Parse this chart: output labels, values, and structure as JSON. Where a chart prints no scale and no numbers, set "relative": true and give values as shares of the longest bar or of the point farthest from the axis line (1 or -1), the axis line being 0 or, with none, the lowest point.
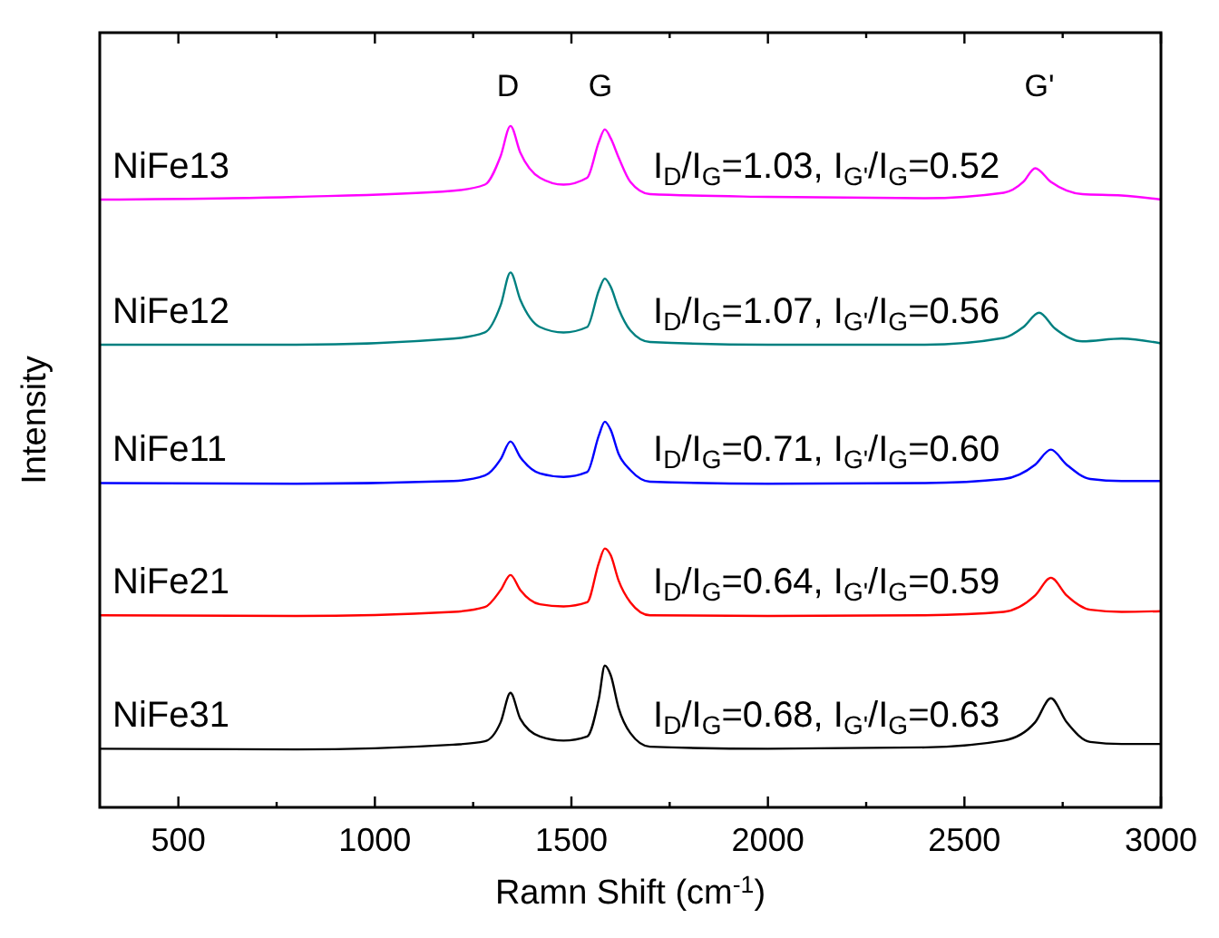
{
  "chart_data": {
    "type": "line",
    "relative": true,
    "xlabel": "Ramn Shift (cm$^{-1}$)",
    "ylabel": "Intensity",
    "xlim": [
      300,
      3000
    ],
    "xticks": [
      500,
      {
        "value": 750,
        "label": null
      },
      1000,
      {
        "value": 1250,
        "label": null
      },
      1500,
      {
        "value": 1750,
        "label": null
      },
      2000,
      {
        "value": 2250,
        "label": null
      },
      2500,
      {
        "value": 2750,
        "label": null
      },
      3000
    ],
    "tick_labels": "x",
    "marker": "none",
    "line_style": "solid",
    "series": [
      {
        "name": "NiFe13",
        "color": "#ff00ff",
        "x": [
          300,
          800,
          1200,
          1280,
          1320,
          1345,
          1370,
          1420,
          1480,
          1540,
          1570,
          1585,
          1600,
          1620,
          1650,
          1700,
          2000,
          2400,
          2600,
          2650,
          2680,
          2720,
          2800,
          2900,
          3000
        ],
        "values": [
          0.892,
          0.896,
          0.905,
          0.914,
          0.956,
          1,
          0.961,
          0.924,
          0.914,
          0.924,
          0.977,
          0.995,
          0.982,
          0.954,
          0.918,
          0.9,
          0.896,
          0.894,
          0.902,
          0.918,
          0.938,
          0.918,
          0.9,
          0.898,
          0.892
        ]
      },
      {
        "name": "NiFe12",
        "color": "#008080",
        "x": [
          300,
          800,
          1200,
          1280,
          1320,
          1345,
          1370,
          1420,
          1480,
          1540,
          1570,
          1585,
          1600,
          1620,
          1650,
          1700,
          2000,
          2400,
          2600,
          2650,
          2690,
          2730,
          2800,
          2900,
          3000
        ],
        "values": [
          0.679,
          0.679,
          0.688,
          0.697,
          0.737,
          0.785,
          0.745,
          0.705,
          0.697,
          0.705,
          0.759,
          0.776,
          0.764,
          0.732,
          0.7,
          0.683,
          0.679,
          0.679,
          0.689,
          0.705,
          0.726,
          0.703,
          0.684,
          0.688,
          0.681
        ]
      },
      {
        "name": "NiFe11",
        "color": "#0000ff",
        "x": [
          300,
          800,
          1200,
          1280,
          1320,
          1345,
          1370,
          1420,
          1480,
          1540,
          1570,
          1585,
          1600,
          1620,
          1650,
          1700,
          2000,
          2400,
          2600,
          2680,
          2720,
          2760,
          2820,
          2900,
          3000
        ],
        "values": [
          0.476,
          0.475,
          0.479,
          0.487,
          0.511,
          0.537,
          0.514,
          0.49,
          0.485,
          0.492,
          0.546,
          0.566,
          0.554,
          0.519,
          0.495,
          0.478,
          0.475,
          0.476,
          0.482,
          0.503,
          0.525,
          0.503,
          0.482,
          0.479,
          0.479
        ]
      },
      {
        "name": "NiFe21",
        "color": "#ff0000",
        "x": [
          300,
          800,
          1200,
          1280,
          1320,
          1345,
          1370,
          1420,
          1480,
          1540,
          1570,
          1585,
          1600,
          1620,
          1650,
          1700,
          2000,
          2400,
          2600,
          2680,
          2720,
          2760,
          2820,
          2900,
          3000
        ],
        "values": [
          0.282,
          0.281,
          0.287,
          0.294,
          0.319,
          0.341,
          0.319,
          0.298,
          0.295,
          0.301,
          0.359,
          0.38,
          0.37,
          0.333,
          0.301,
          0.282,
          0.281,
          0.282,
          0.287,
          0.311,
          0.337,
          0.311,
          0.29,
          0.287,
          0.288
        ]
      },
      {
        "name": "NiFe31",
        "color": "#000000",
        "x": [
          300,
          800,
          1200,
          1280,
          1320,
          1345,
          1370,
          1420,
          1480,
          1540,
          1570,
          1585,
          1600,
          1620,
          1650,
          1700,
          2000,
          2400,
          2600,
          2680,
          2720,
          2760,
          2820,
          2900,
          3000
        ],
        "values": [
          0.086,
          0.085,
          0.092,
          0.097,
          0.125,
          0.168,
          0.13,
          0.104,
          0.098,
          0.104,
          0.16,
          0.208,
          0.194,
          0.146,
          0.109,
          0.089,
          0.086,
          0.088,
          0.098,
          0.125,
          0.16,
          0.125,
          0.096,
          0.093,
          0.093
        ]
      }
    ],
    "annotations": [
      "D",
      "G",
      "G'",
      "I$_{D}$/I$_{G}$=1.03, I$_{G'}$/I$_{G}$=0.52",
      "I$_{D}$/I$_{G}$=1.07, I$_{G'}$/I$_{G}$=0.56",
      "I$_{D}$/I$_{G}$=0.71, I$_{G'}$/I$_{G}$=0.60",
      "I$_{D}$/I$_{G}$=0.64, I$_{G'}$/I$_{G}$=0.59",
      "I$_{D}$/I$_{G}$=0.68, I$_{G'}$/I$_{G}$=0.63"
    ]
  }
}
